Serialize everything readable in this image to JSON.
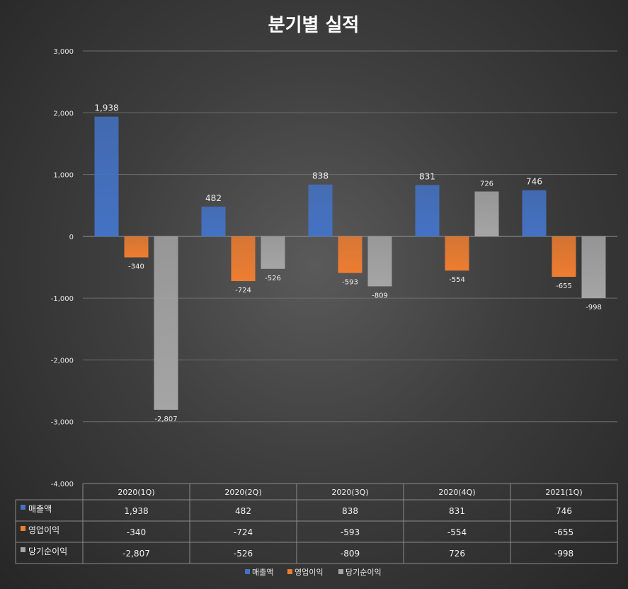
{
  "chart_data": {
    "type": "bar",
    "title": "분기별 실적",
    "categories": [
      "2020(1Q)",
      "2020(2Q)",
      "2020(3Q)",
      "2020(4Q)",
      "2021(1Q)"
    ],
    "series": [
      {
        "name": "매출액",
        "values": [
          1938,
          482,
          838,
          831,
          746
        ],
        "labels": [
          "1,938",
          "482",
          "838",
          "831",
          "746"
        ],
        "color": "#4472C4"
      },
      {
        "name": "영업이익",
        "values": [
          -340,
          -724,
          -593,
          -554,
          -655
        ],
        "labels": [
          "-340",
          "-724",
          "-593",
          "-554",
          "-655"
        ],
        "color": "#ED7D31"
      },
      {
        "name": "당기순이익",
        "values": [
          -2807,
          -526,
          -809,
          726,
          -998
        ],
        "labels": [
          "-2,807",
          "-526",
          "-809",
          "726",
          "-998"
        ],
        "color": "#A5A5A5"
      }
    ],
    "ylim": [
      -4000,
      3000
    ],
    "yticks": [
      3000,
      2000,
      1000,
      0,
      -1000,
      -2000,
      -3000,
      -4000
    ],
    "ytick_labels": [
      "3,000",
      "2,000",
      "1,000",
      "0",
      "-1,000",
      "-2,000",
      "-3,000",
      "-4,000"
    ],
    "grid": true,
    "data_table": true,
    "legend_position": "bottom"
  }
}
